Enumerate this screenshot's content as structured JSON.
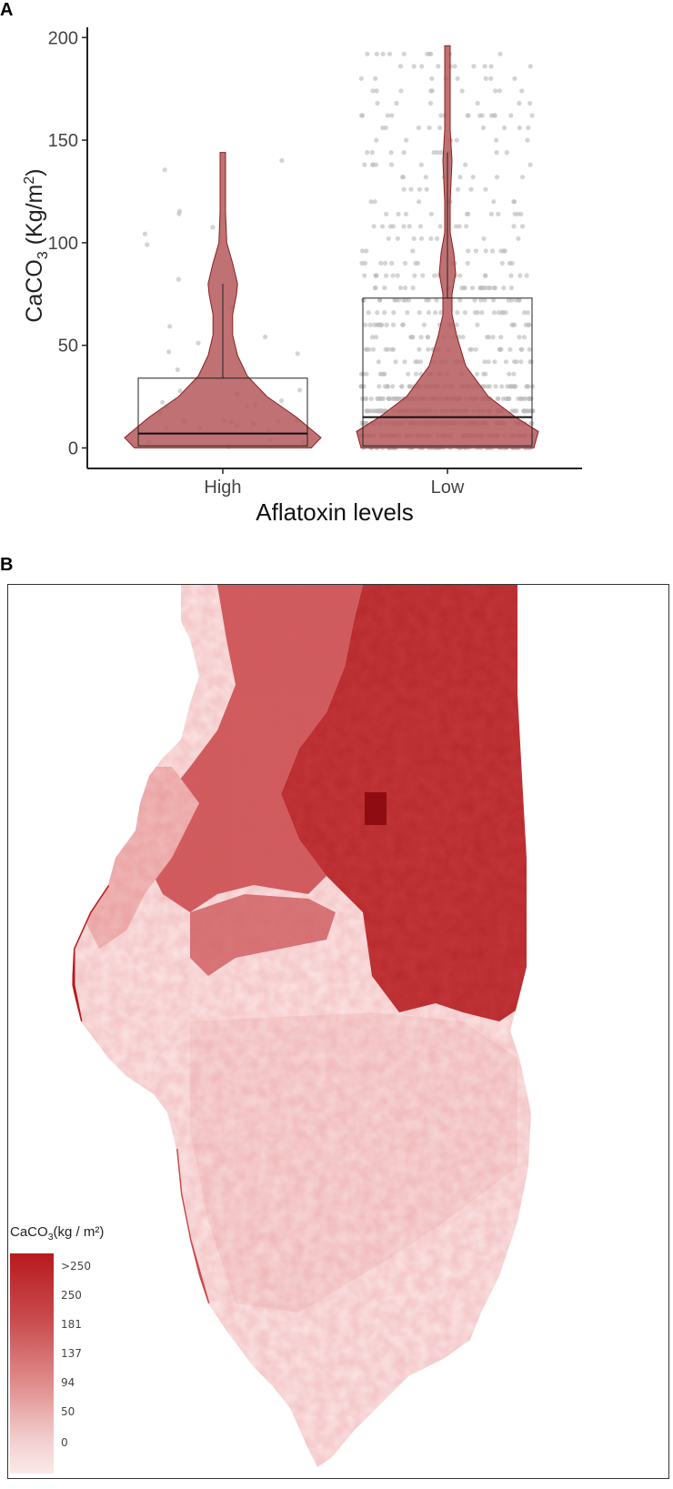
{
  "panel_a_label": "A",
  "panel_b_label": "B",
  "chart_data": {
    "type": "violin",
    "xlabel": "Aflatoxin levels",
    "ylabel_prefix": "CaCO",
    "ylabel_sub": "3",
    "ylabel_suffix": " (Kg/m",
    "ylabel_sup": "2",
    "ylabel_close": ")",
    "ylim": [
      -10,
      205
    ],
    "yticks": [
      0,
      50,
      100,
      150,
      200
    ],
    "ytick_labels": [
      "0",
      "50",
      "100",
      "150",
      "200"
    ],
    "categories": [
      "High",
      "Low"
    ],
    "box": [
      {
        "category": "High",
        "q1": 1,
        "median": 7,
        "q3": 34,
        "whisker_high": 80
      },
      {
        "category": "Low",
        "q1": 1,
        "median": 15,
        "q3": 73,
        "whisker_high": 144
      }
    ],
    "violin_max": [
      144,
      196
    ],
    "color_fill": "#b5585a",
    "color_edge": "#8a1f22",
    "point_color": "#bdbdbd",
    "grid": false
  },
  "map": {
    "legend_title_prefix": "CaCO",
    "legend_title_sub": "3",
    "legend_title_suffix": "(kg / m²)",
    "legend_ticks": [
      ">250",
      "250",
      "181",
      "137",
      "94",
      "50",
      "0"
    ],
    "colors": {
      "high": "#b81a1e",
      "mid": "#c94b4d",
      "low": "#f6d4d4",
      "lowest": "#fbe9e9"
    }
  }
}
